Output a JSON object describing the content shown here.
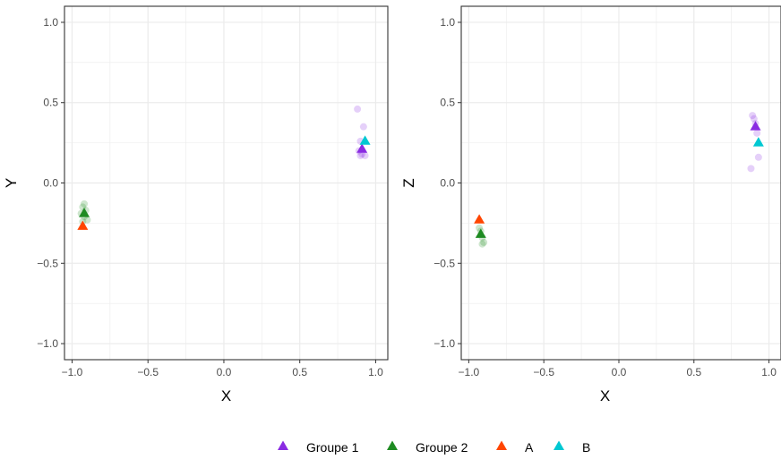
{
  "chart_data": [
    {
      "type": "scatter",
      "xlabel": "X",
      "ylabel": "Y",
      "xlim": [
        -1.05,
        1.08
      ],
      "ylim": [
        -1.1,
        1.1
      ],
      "xticks": [
        -1.0,
        -0.5,
        0.0,
        0.5,
        1.0
      ],
      "yticks": [
        -1.0,
        -0.5,
        0.0,
        0.5,
        1.0
      ],
      "xtick_labels": [
        "−1.0",
        "−0.5",
        "0.0",
        "0.5",
        "1.0"
      ],
      "ytick_labels": [
        "−1.0",
        "−0.5",
        "0.0",
        "0.5",
        "1.0"
      ],
      "grid": true,
      "points": [
        {
          "series": "Groupe 2",
          "x": -0.92,
          "y": -0.13,
          "faded": true
        },
        {
          "series": "Groupe 2",
          "x": -0.93,
          "y": -0.15,
          "faded": true
        },
        {
          "series": "Groupe 2",
          "x": -0.91,
          "y": -0.17,
          "faded": true
        },
        {
          "series": "Groupe 2",
          "x": -0.94,
          "y": -0.19,
          "faded": true
        },
        {
          "series": "Groupe 2",
          "x": -0.92,
          "y": -0.21,
          "faded": true
        },
        {
          "series": "Groupe 2",
          "x": -0.9,
          "y": -0.23,
          "faded": true
        },
        {
          "series": "Groupe 2",
          "x": -0.93,
          "y": -0.24,
          "faded": true
        },
        {
          "series": "Groupe 1",
          "x": 0.88,
          "y": 0.46,
          "faded": true
        },
        {
          "series": "Groupe 1",
          "x": 0.92,
          "y": 0.35,
          "faded": true
        },
        {
          "series": "Groupe 1",
          "x": 0.9,
          "y": 0.26,
          "faded": true
        },
        {
          "series": "Groupe 1",
          "x": 0.89,
          "y": 0.2,
          "faded": true
        },
        {
          "series": "Groupe 1",
          "x": 0.91,
          "y": 0.18,
          "faded": true
        },
        {
          "series": "Groupe 1",
          "x": 0.93,
          "y": 0.17,
          "faded": true
        },
        {
          "series": "Groupe 1",
          "x": 0.9,
          "y": 0.17,
          "faded": true
        },
        {
          "series": "Groupe 2",
          "x": -0.92,
          "y": -0.19,
          "faded": false
        },
        {
          "series": "A",
          "x": -0.93,
          "y": -0.27,
          "faded": false
        },
        {
          "series": "Groupe 1",
          "x": 0.91,
          "y": 0.21,
          "faded": false
        },
        {
          "series": "B",
          "x": 0.93,
          "y": 0.26,
          "faded": false
        }
      ]
    },
    {
      "type": "scatter",
      "xlabel": "X",
      "ylabel": "Z",
      "xlim": [
        -1.05,
        1.08
      ],
      "ylim": [
        -1.1,
        1.1
      ],
      "xticks": [
        -1.0,
        -0.5,
        0.0,
        0.5,
        1.0
      ],
      "yticks": [
        -1.0,
        -0.5,
        0.0,
        0.5,
        1.0
      ],
      "xtick_labels": [
        "−1.0",
        "−0.5",
        "0.0",
        "0.5",
        "1.0"
      ],
      "ytick_labels": [
        "−1.0",
        "−0.5",
        "0.0",
        "0.5",
        "1.0"
      ],
      "grid": true,
      "points": [
        {
          "series": "Groupe 2",
          "x": -0.93,
          "y": -0.28,
          "faded": true
        },
        {
          "series": "Groupe 2",
          "x": -0.92,
          "y": -0.3,
          "faded": true
        },
        {
          "series": "Groupe 2",
          "x": -0.91,
          "y": -0.34,
          "faded": true
        },
        {
          "series": "Groupe 2",
          "x": -0.9,
          "y": -0.37,
          "faded": true
        },
        {
          "series": "Groupe 2",
          "x": -0.91,
          "y": -0.38,
          "faded": true
        },
        {
          "series": "Groupe 1",
          "x": 0.89,
          "y": 0.42,
          "faded": true
        },
        {
          "series": "Groupe 1",
          "x": 0.9,
          "y": 0.4,
          "faded": true
        },
        {
          "series": "Groupe 1",
          "x": 0.91,
          "y": 0.37,
          "faded": true
        },
        {
          "series": "Groupe 1",
          "x": 0.92,
          "y": 0.31,
          "faded": true
        },
        {
          "series": "Groupe 1",
          "x": 0.93,
          "y": 0.16,
          "faded": true
        },
        {
          "series": "Groupe 1",
          "x": 0.88,
          "y": 0.09,
          "faded": true
        },
        {
          "series": "Groupe 2",
          "x": -0.92,
          "y": -0.32,
          "faded": false
        },
        {
          "series": "A",
          "x": -0.93,
          "y": -0.23,
          "faded": false
        },
        {
          "series": "Groupe 1",
          "x": 0.91,
          "y": 0.35,
          "faded": false
        },
        {
          "series": "B",
          "x": 0.93,
          "y": 0.25,
          "faded": false
        }
      ]
    }
  ],
  "legend": {
    "position": "bottom",
    "entries": [
      {
        "label": "Groupe 1",
        "color": "#8A2BE2"
      },
      {
        "label": "Groupe 2",
        "color": "#1E8B22"
      },
      {
        "label": "A",
        "color": "#FF4500"
      },
      {
        "label": "B",
        "color": "#00C8D2"
      }
    ]
  },
  "colors": {
    "Groupe 1": "#8A2BE2",
    "Groupe 2": "#1E8B22",
    "A": "#FF4500",
    "B": "#00C8D2",
    "grid": "#ebebeb",
    "panel_border": "#333333",
    "tick_text": "#4d4d4d"
  },
  "marker": {
    "highlight": "triangle",
    "faded": "circle"
  }
}
